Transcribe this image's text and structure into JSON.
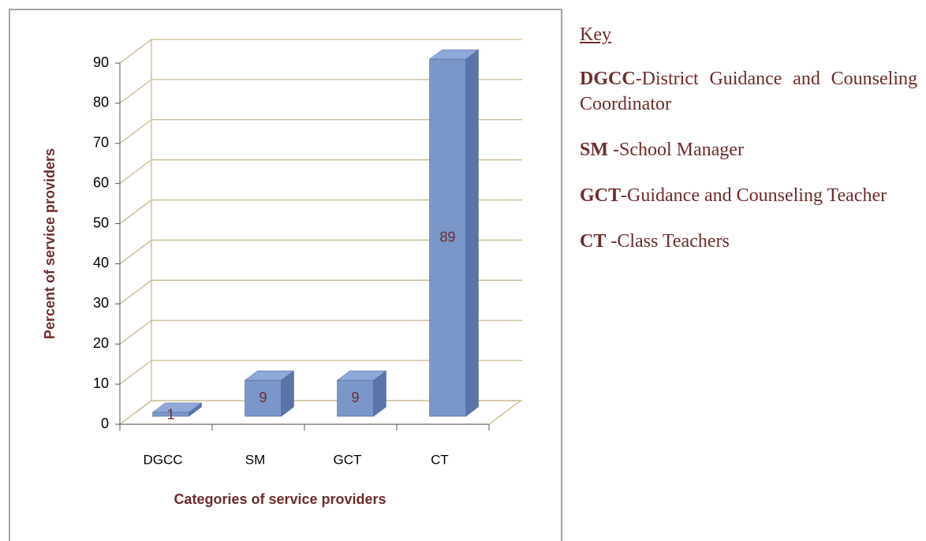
{
  "chart_data": {
    "type": "bar",
    "xlabel": "Categories of service providers",
    "ylabel": "Percent of service providers",
    "categories": [
      "DGCC",
      "SM",
      "GCT",
      "CT"
    ],
    "values": [
      1,
      9,
      9,
      89
    ],
    "color": "#7b96c8",
    "ylim": [
      0,
      90
    ],
    "yticks": [
      0,
      10,
      20,
      30,
      40,
      50,
      60,
      70,
      80,
      90
    ],
    "grid": true
  },
  "key": {
    "title": "Key",
    "items": [
      {
        "abbr": "DGCC",
        "text": "-District Guidance and Counseling Coordinator"
      },
      {
        "abbr": "SM",
        "text": " -School Manager"
      },
      {
        "abbr": "GCT",
        "text": "-Guidance and Counseling Teacher"
      },
      {
        "abbr": "CT",
        "text": " -Class Teachers"
      }
    ]
  }
}
